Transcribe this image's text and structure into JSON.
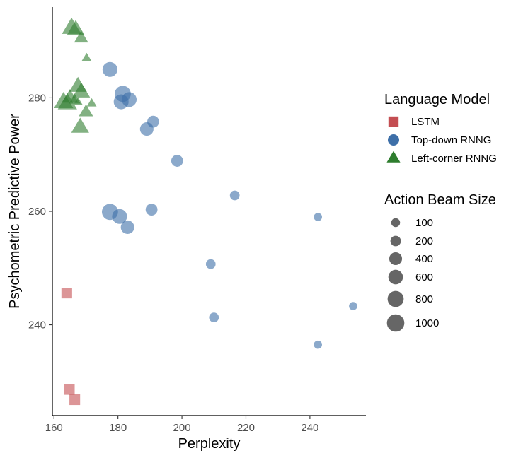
{
  "chart_data": {
    "type": "scatter",
    "xlabel": "Perplexity",
    "ylabel": "Psychometric Predictive Power",
    "xlim": [
      159.5,
      257.5
    ],
    "ylim": [
      224,
      296
    ],
    "xticks": [
      160,
      180,
      200,
      220,
      240
    ],
    "yticks": [
      240,
      260,
      280
    ],
    "grid": false,
    "legend_position": "right",
    "colors": {
      "LSTM": "#c44e52",
      "Top-down RNNG": "#3d6fa8",
      "Left-corner RNNG": "#2e7d2e"
    },
    "series": [
      {
        "name": "LSTM",
        "marker": "square",
        "points": [
          {
            "x": 164.0,
            "y": 245.6,
            "size": 400
          },
          {
            "x": 164.8,
            "y": 228.6,
            "size": 400
          },
          {
            "x": 166.5,
            "y": 226.8,
            "size": 400
          }
        ]
      },
      {
        "name": "Top-down RNNG",
        "marker": "circle",
        "points": [
          {
            "x": 177.5,
            "y": 285.0,
            "size": 800
          },
          {
            "x": 181.5,
            "y": 280.7,
            "size": 1000
          },
          {
            "x": 181.0,
            "y": 279.3,
            "size": 800
          },
          {
            "x": 183.5,
            "y": 279.7,
            "size": 800
          },
          {
            "x": 191.0,
            "y": 275.8,
            "size": 400
          },
          {
            "x": 189.0,
            "y": 274.5,
            "size": 600
          },
          {
            "x": 198.5,
            "y": 268.9,
            "size": 400
          },
          {
            "x": 216.5,
            "y": 262.8,
            "size": 200
          },
          {
            "x": 177.5,
            "y": 259.9,
            "size": 1000
          },
          {
            "x": 180.5,
            "y": 259.1,
            "size": 800
          },
          {
            "x": 183.0,
            "y": 257.2,
            "size": 600
          },
          {
            "x": 190.5,
            "y": 260.3,
            "size": 400
          },
          {
            "x": 242.5,
            "y": 259.0,
            "size": 100
          },
          {
            "x": 209.0,
            "y": 250.7,
            "size": 200
          },
          {
            "x": 210.0,
            "y": 241.3,
            "size": 200
          },
          {
            "x": 253.5,
            "y": 243.3,
            "size": 100
          },
          {
            "x": 242.5,
            "y": 236.5,
            "size": 100
          }
        ]
      },
      {
        "name": "Left-corner RNNG",
        "marker": "triangle",
        "points": [
          {
            "x": 165.5,
            "y": 292.3,
            "size": 1000
          },
          {
            "x": 166.8,
            "y": 292.0,
            "size": 800
          },
          {
            "x": 168.5,
            "y": 290.5,
            "size": 400
          },
          {
            "x": 170.2,
            "y": 287.0,
            "size": 100
          },
          {
            "x": 167.5,
            "y": 282.0,
            "size": 800
          },
          {
            "x": 168.5,
            "y": 281.0,
            "size": 800
          },
          {
            "x": 165.0,
            "y": 280.0,
            "size": 600
          },
          {
            "x": 163.0,
            "y": 279.2,
            "size": 1000
          },
          {
            "x": 164.2,
            "y": 279.0,
            "size": 1000
          },
          {
            "x": 166.5,
            "y": 279.6,
            "size": 200
          },
          {
            "x": 167.5,
            "y": 279.2,
            "size": 100
          },
          {
            "x": 171.8,
            "y": 279.0,
            "size": 100
          },
          {
            "x": 170.0,
            "y": 277.5,
            "size": 400
          },
          {
            "x": 168.2,
            "y": 274.8,
            "size": 800
          }
        ]
      }
    ],
    "legend": {
      "color_title": "Language Model",
      "color_entries": [
        "LSTM",
        "Top-down RNNG",
        "Left-corner RNNG"
      ],
      "size_title": "Action Beam Size",
      "size_entries": [
        {
          "label": "100",
          "value": 100
        },
        {
          "label": "200",
          "value": 200
        },
        {
          "label": "400",
          "value": 400
        },
        {
          "label": "600",
          "value": 600
        },
        {
          "label": "800",
          "value": 800
        },
        {
          "label": "1000",
          "value": 1000
        }
      ]
    }
  }
}
